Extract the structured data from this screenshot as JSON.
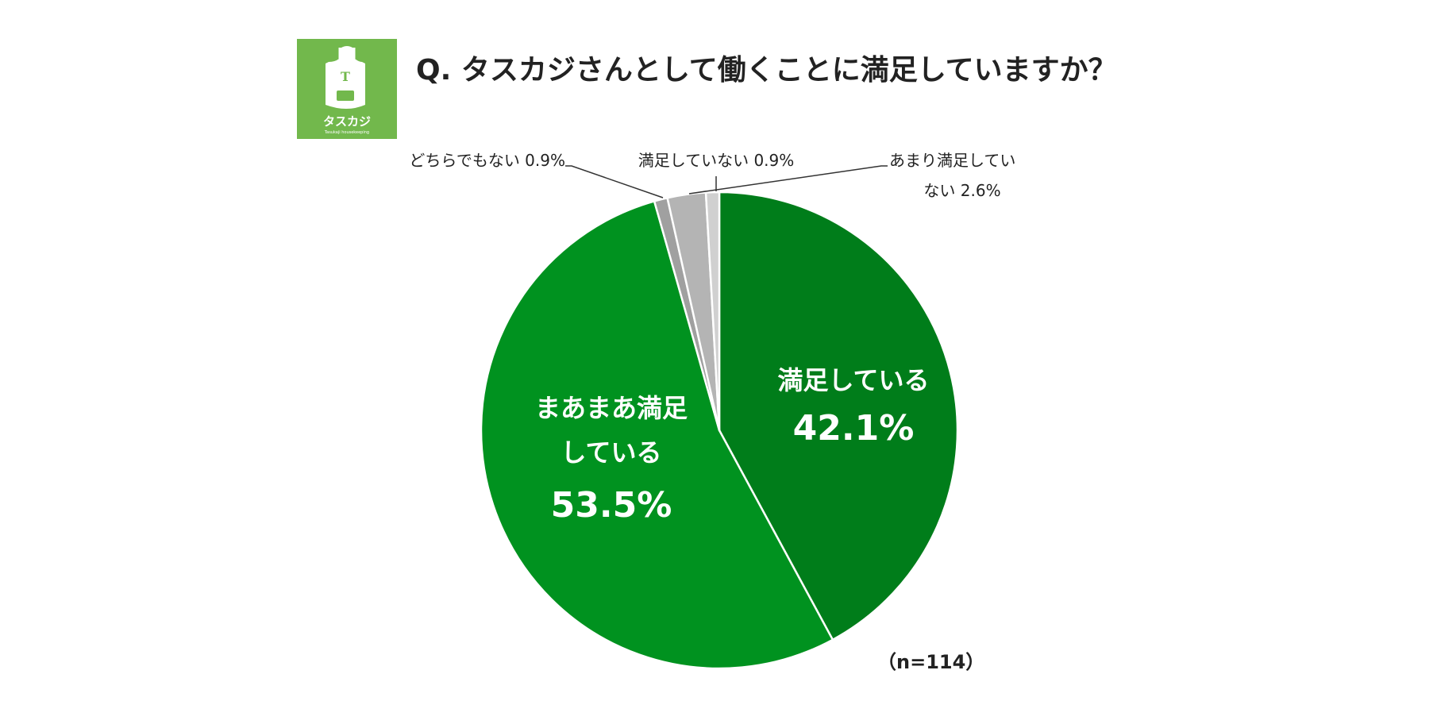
{
  "logo": {
    "text": "タスカジ",
    "subtext": "Tasukaji housekeeping",
    "letter": "T",
    "bg_color": "#72B84C"
  },
  "title": "Q. タスカジさんとして働くことに満足していますか？",
  "sample_note": "（n=114）",
  "chart_data": {
    "type": "pie",
    "start": "12 o'clock",
    "direction": "clockwise",
    "slices": [
      {
        "label_lines": [
          "満足している"
        ],
        "value": 42.1,
        "value_label": "42.1%",
        "color": "#007D1A",
        "label_placement": "inside"
      },
      {
        "label_lines": [
          "まあまあ満足",
          "している"
        ],
        "value": 53.5,
        "value_label": "53.5%",
        "color": "#00921F",
        "label_placement": "inside"
      },
      {
        "label_lines": [
          "どちらでもない"
        ],
        "value": 0.9,
        "value_label": "0.9%",
        "color": "#A0A0A0",
        "label_placement": "outside-left"
      },
      {
        "label_lines": [
          "あまり満足してい",
          "ない"
        ],
        "value": 2.6,
        "value_label": "2.6%",
        "color": "#B4B4B4",
        "label_placement": "outside-right"
      },
      {
        "label_lines": [
          "満足していない"
        ],
        "value": 0.9,
        "value_label": "0.9%",
        "color": "#D0D0D0",
        "label_placement": "outside-top"
      }
    ]
  }
}
